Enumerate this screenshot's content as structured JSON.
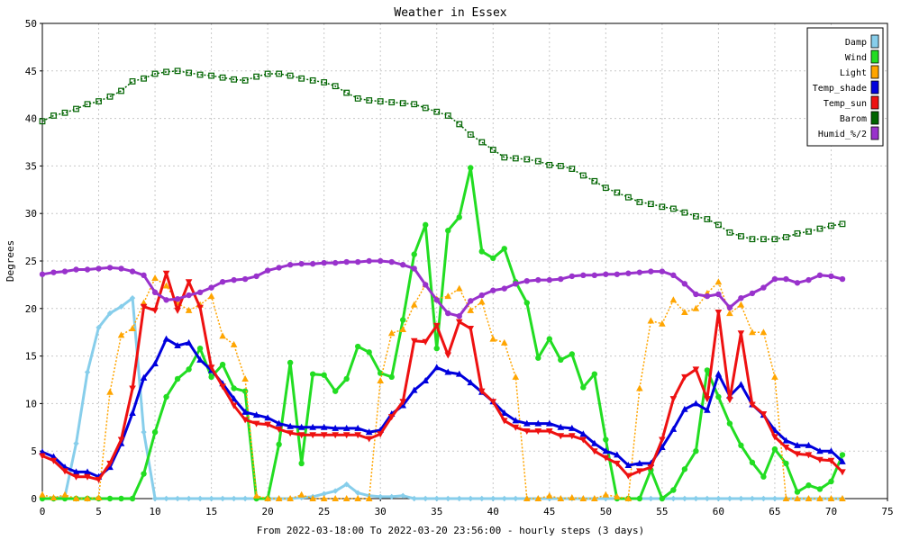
{
  "chart_data": {
    "type": "line",
    "title": "Weather in Essex",
    "xlabel": "From 2022-03-18:00 To 2022-03-20 23:56:00 - hourly steps (3 days)",
    "ylabel": "Degrees",
    "xlim": [
      0,
      75
    ],
    "ylim": [
      0,
      50
    ],
    "x_ticks": [
      0,
      5,
      10,
      15,
      20,
      25,
      30,
      35,
      40,
      45,
      50,
      55,
      60,
      65,
      70,
      75
    ],
    "y_ticks": [
      0,
      5,
      10,
      15,
      20,
      25,
      30,
      35,
      40,
      45,
      50
    ],
    "grid": true,
    "legend_position": "top-right",
    "series": [
      {
        "name": "Damp",
        "color": "#87ceeb",
        "marker": "diamond",
        "style": "solid",
        "values": [
          0,
          0,
          0.2,
          5.8,
          13.3,
          18,
          19.5,
          20.2,
          21.1,
          7,
          0,
          0,
          0,
          0,
          0,
          0,
          0,
          0,
          0,
          0,
          0,
          0,
          0,
          0.1,
          0.2,
          0.5,
          0.8,
          1.5,
          0.6,
          0.3,
          0.2,
          0.2,
          0.3,
          0,
          0,
          0,
          0,
          0,
          0,
          0,
          0,
          0,
          0,
          0,
          0,
          0,
          0,
          0,
          0,
          0,
          0,
          0,
          0,
          0,
          0,
          0,
          0,
          0,
          0,
          0,
          0,
          0,
          0,
          0,
          0,
          0,
          0,
          0,
          0,
          0,
          0,
          0
        ]
      },
      {
        "name": "Wind",
        "color": "#22dd22",
        "marker": "circle",
        "style": "solid",
        "values": [
          0,
          0,
          0,
          0,
          0,
          0,
          0,
          0,
          0,
          2.6,
          7,
          10.7,
          12.6,
          13.6,
          15.8,
          12.8,
          14.1,
          11.6,
          11.3,
          0,
          0,
          5.7,
          14.3,
          3.7,
          13.1,
          13,
          11.3,
          12.6,
          16,
          15.4,
          13.2,
          12.8,
          18.8,
          25.7,
          28.8,
          15.8,
          28.2,
          29.6,
          34.8,
          26,
          25.3,
          26.3,
          22.8,
          20.6,
          14.8,
          16.8,
          14.6,
          15.2,
          11.7,
          13.1,
          6.2,
          0,
          0,
          0,
          3,
          0,
          0.9,
          3.1,
          5,
          13.5,
          10.7,
          7.9,
          5.6,
          3.8,
          2.3,
          5.2,
          3.7,
          0.7,
          1.4,
          1,
          1.8,
          4.6
        ]
      },
      {
        "name": "Light",
        "color": "#ffa500",
        "marker": "triangle-up",
        "style": "dotted",
        "values": [
          0.4,
          0.1,
          0.4,
          0,
          0,
          0.1,
          11.2,
          17.2,
          17.9,
          20.6,
          23.2,
          22.4,
          20.6,
          19.8,
          20.4,
          21.3,
          17.1,
          16.2,
          12.6,
          0.3,
          0,
          0,
          0,
          0.4,
          0,
          0,
          0,
          0,
          0,
          0,
          12.4,
          17.4,
          17.8,
          20.4,
          22.5,
          21,
          21.3,
          22.1,
          19.8,
          20.7,
          16.8,
          16.4,
          12.8,
          0,
          0,
          0.3,
          0,
          0.1,
          0,
          0,
          0.4,
          0.2,
          0,
          11.6,
          18.7,
          18.4,
          20.9,
          19.6,
          20,
          21.6,
          22.8,
          19.5,
          20.4,
          17.5,
          17.5,
          12.8,
          0,
          0,
          0,
          0,
          0,
          0
        ]
      },
      {
        "name": "Temp_shade",
        "color": "#0000dd",
        "marker": "triangle-up",
        "style": "solid",
        "values": [
          4.9,
          4.4,
          3.3,
          2.8,
          2.8,
          2.3,
          3.3,
          5.8,
          9,
          12.7,
          14.2,
          16.8,
          16.1,
          16.4,
          14.6,
          13.5,
          12.1,
          10.5,
          9.1,
          8.8,
          8.5,
          7.9,
          7.6,
          7.5,
          7.5,
          7.5,
          7.4,
          7.4,
          7.4,
          7,
          7.2,
          8.9,
          9.8,
          11.4,
          12.4,
          13.8,
          13.3,
          13.1,
          12.2,
          11.2,
          10.2,
          9,
          8.2,
          7.9,
          7.9,
          7.9,
          7.5,
          7.4,
          6.8,
          5.8,
          5,
          4.6,
          3.5,
          3.7,
          3.7,
          5.4,
          7.3,
          9.4,
          10,
          9.3,
          13.1,
          10.8,
          12,
          9.9,
          8.8,
          7.2,
          6.1,
          5.6,
          5.6,
          5,
          5,
          3.9
        ]
      },
      {
        "name": "Temp_sun",
        "color": "#ee1111",
        "marker": "triangle-down",
        "style": "solid",
        "values": [
          4.5,
          4,
          2.9,
          2.3,
          2.3,
          2,
          3.7,
          6.2,
          11.6,
          20.2,
          19.8,
          23.7,
          19.8,
          22.8,
          20.1,
          13.8,
          11.8,
          9.8,
          8.3,
          7.9,
          7.8,
          7.3,
          6.9,
          6.7,
          6.7,
          6.7,
          6.7,
          6.7,
          6.7,
          6.3,
          6.8,
          8.6,
          10.2,
          16.6,
          16.5,
          18.2,
          15.1,
          18.6,
          17.9,
          11.3,
          10.2,
          8.2,
          7.5,
          7.1,
          7.1,
          7.1,
          6.6,
          6.6,
          6.2,
          5,
          4.3,
          3.7,
          2.4,
          2.9,
          3.3,
          6.2,
          10.5,
          12.8,
          13.6,
          10.5,
          19.6,
          10.4,
          17.4,
          9.9,
          8.9,
          6.5,
          5.4,
          4.7,
          4.6,
          4.1,
          4,
          2.8
        ]
      },
      {
        "name": "Barom",
        "color": "#006400",
        "marker": "square",
        "style": "dotted",
        "values": [
          39.7,
          40.3,
          40.6,
          41,
          41.5,
          41.8,
          42.3,
          42.9,
          43.9,
          44.2,
          44.7,
          44.9,
          45,
          44.8,
          44.6,
          44.5,
          44.3,
          44.1,
          44,
          44.4,
          44.7,
          44.7,
          44.5,
          44.2,
          44,
          43.8,
          43.4,
          42.7,
          42.1,
          41.9,
          41.8,
          41.7,
          41.6,
          41.5,
          41.1,
          40.7,
          40.3,
          39.4,
          38.3,
          37.5,
          36.7,
          35.9,
          35.8,
          35.7,
          35.5,
          35.1,
          35,
          34.7,
          34,
          33.4,
          32.7,
          32.2,
          31.7,
          31.2,
          31,
          30.7,
          30.5,
          30.1,
          29.7,
          29.4,
          28.8,
          28,
          27.6,
          27.3,
          27.3,
          27.3,
          27.5,
          27.9,
          28.1,
          28.4,
          28.7,
          28.9
        ]
      },
      {
        "name": "Humid_%/2",
        "color": "#9932cc",
        "marker": "circle",
        "style": "solid",
        "values": [
          23.6,
          23.8,
          23.9,
          24.1,
          24.1,
          24.2,
          24.3,
          24.2,
          23.9,
          23.5,
          21.7,
          20.9,
          21,
          21.4,
          21.7,
          22.2,
          22.8,
          23,
          23.1,
          23.4,
          24,
          24.3,
          24.6,
          24.7,
          24.7,
          24.8,
          24.8,
          24.9,
          24.9,
          25,
          25,
          24.9,
          24.6,
          24.2,
          22.5,
          20.9,
          19.5,
          19.2,
          20.8,
          21.4,
          21.9,
          22.1,
          22.6,
          22.9,
          23,
          23,
          23.1,
          23.4,
          23.5,
          23.5,
          23.6,
          23.6,
          23.7,
          23.8,
          23.9,
          23.9,
          23.5,
          22.6,
          21.5,
          21.3,
          21.5,
          20.1,
          21.1,
          21.6,
          22.2,
          23.1,
          23.1,
          22.7,
          23,
          23.5,
          23.4,
          23.1
        ]
      }
    ]
  }
}
